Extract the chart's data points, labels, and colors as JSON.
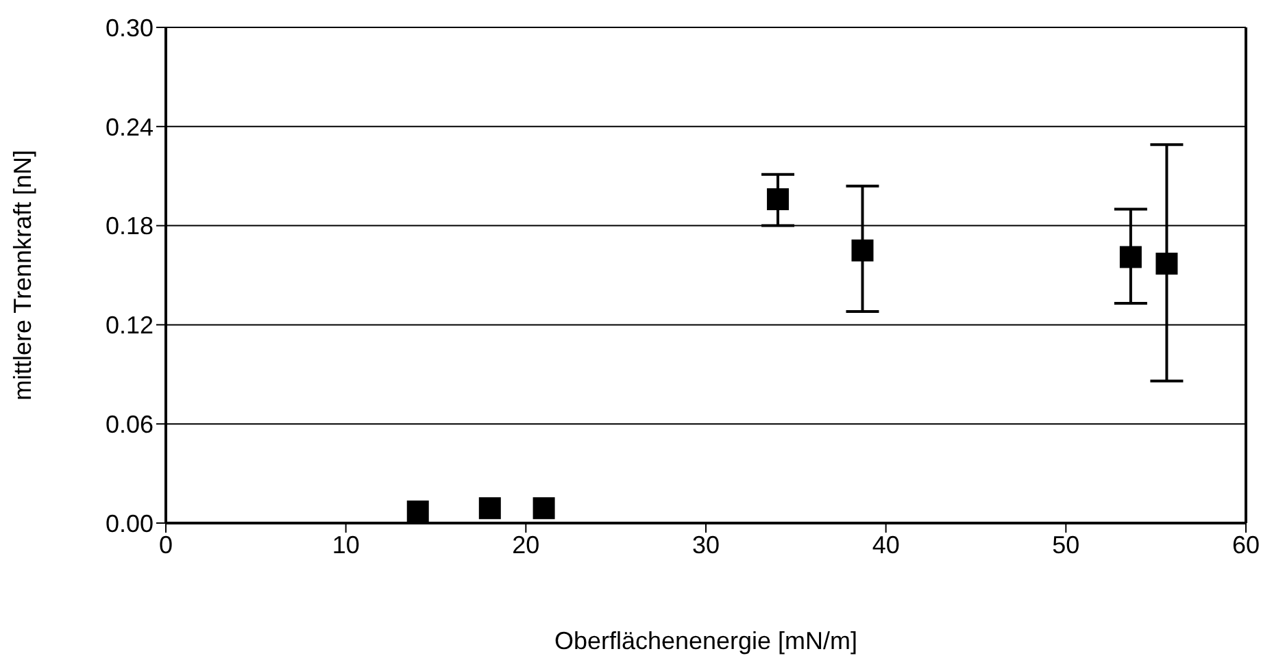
{
  "chart_data": {
    "type": "scatter",
    "xlabel": "Oberflächenenergie [mN/m]",
    "ylabel": "mittlere Trennkraft [nN]",
    "x": [
      14,
      18,
      21,
      34,
      38.7,
      53.6,
      55.6
    ],
    "series": [
      {
        "color": "#000000",
        "values": [
          0.007,
          0.009,
          0.009,
          0.196,
          0.165,
          0.161,
          0.157
        ],
        "errors": [
          null,
          null,
          null,
          [
            0.18,
            0.211
          ],
          [
            0.128,
            0.204
          ],
          [
            0.133,
            0.19
          ],
          [
            0.086,
            0.229
          ]
        ]
      }
    ],
    "xlim": [
      0,
      60
    ],
    "xticks": [
      0,
      10,
      20,
      30,
      40,
      50,
      60
    ],
    "ylim": [
      0,
      0.3
    ],
    "yticks": [
      {
        "value": 0,
        "label": "0.00"
      },
      {
        "value": 0.06,
        "label": "0.06"
      },
      {
        "value": 0.12,
        "label": "0.12"
      },
      {
        "value": 0.18,
        "label": "0.18"
      },
      {
        "value": 0.24,
        "label": "0.24"
      },
      {
        "value": 0.3,
        "label": "0.30"
      }
    ],
    "grid": "y",
    "marker": "square",
    "legend": false
  }
}
